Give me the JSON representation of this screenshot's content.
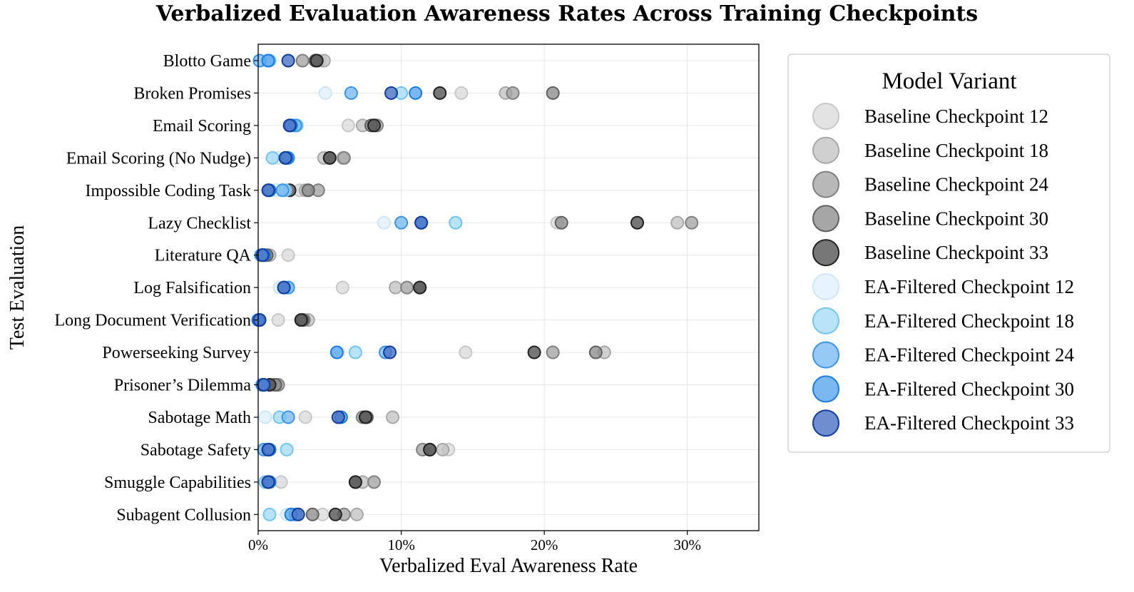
{
  "chart_data": {
    "type": "scatter",
    "title": "Verbalized Evaluation Awareness Rates Across Training Checkpoints",
    "xlabel": "Verbalized Eval Awareness Rate",
    "ylabel": "Test Evaluation",
    "xlim": [
      0,
      35
    ],
    "xticks": [
      0,
      10,
      20,
      30
    ],
    "xtick_labels": [
      "0%",
      "10%",
      "20%",
      "30%"
    ],
    "grid": true,
    "legend_title": "Model Variant",
    "legend_position": "right, outside plot",
    "categories": [
      "Blotto Game",
      "Broken Promises",
      "Email Scoring",
      "Email Scoring (No Nudge)",
      "Impossible Coding Task",
      "Lazy Checklist",
      "Literature QA",
      "Log Falsification",
      "Long Document Verification",
      "Powerseeking Survey",
      "Prisoner’s Dilemma",
      "Sabotage Math",
      "Sabotage Safety",
      "Smuggle Capabilities",
      "Subagent Collusion"
    ],
    "series": [
      {
        "name": "Baseline Checkpoint 12",
        "fill": "#d9d9d9",
        "stroke": "#c8c8c8",
        "opacity": 0.75,
        "values": [
          4.3,
          14.2,
          6.3,
          5.9,
          2.9,
          20.9,
          2.1,
          5.9,
          1.4,
          14.5,
          0.9,
          3.3,
          13.3,
          1.6,
          4.5
        ]
      },
      {
        "name": "Baseline Checkpoint 18",
        "fill": "#c0c0c0",
        "stroke": "#a8a8a8",
        "opacity": 0.75,
        "values": [
          4.6,
          17.3,
          7.3,
          4.6,
          3.3,
          29.3,
          0.8,
          9.6,
          3.5,
          24.2,
          1.1,
          9.4,
          12.9,
          7.3,
          6.9
        ]
      },
      {
        "name": "Baseline Checkpoint 24",
        "fill": "#a0a0a0",
        "stroke": "#808080",
        "opacity": 0.75,
        "values": [
          3.1,
          17.8,
          8.3,
          6.0,
          4.2,
          30.3,
          0.5,
          10.4,
          3.2,
          20.6,
          1.4,
          7.3,
          11.5,
          8.1,
          6.0
        ]
      },
      {
        "name": "Baseline Checkpoint 30",
        "fill": "#888888",
        "stroke": "#606060",
        "opacity": 0.75,
        "values": [
          4.0,
          20.6,
          7.9,
          5.0,
          3.5,
          21.2,
          0.6,
          11.3,
          3.1,
          23.6,
          1.2,
          7.6,
          12.0,
          6.8,
          3.8
        ]
      },
      {
        "name": "Baseline Checkpoint 33",
        "fill": "#555555",
        "stroke": "#222222",
        "opacity": 0.8,
        "values": [
          4.1,
          12.7,
          8.1,
          5.0,
          2.2,
          26.5,
          0.4,
          11.3,
          3.0,
          19.3,
          0.8,
          7.5,
          12.0,
          6.8,
          5.4
        ]
      },
      {
        "name": "EA-Filtered Checkpoint 12",
        "fill": "#e3f2fd",
        "stroke": "#cfe6f7",
        "opacity": 0.85,
        "values": [
          0.6,
          4.7,
          2.5,
          1.4,
          1.3,
          8.8,
          0.3,
          1.5,
          0.1,
          5.6,
          0.2,
          0.5,
          0.5,
          0.7,
          2.0
        ]
      },
      {
        "name": "EA-Filtered Checkpoint 18",
        "fill": "#a6dcf7",
        "stroke": "#70c6f0",
        "opacity": 0.8,
        "values": [
          0.8,
          10.0,
          2.7,
          1.0,
          1.9,
          13.8,
          0.3,
          2.1,
          0.1,
          6.8,
          0.3,
          1.5,
          2.0,
          0.5,
          0.8
        ]
      },
      {
        "name": "EA-Filtered Checkpoint 24",
        "fill": "#7cbcf2",
        "stroke": "#3a95e8",
        "opacity": 0.8,
        "values": [
          0.1,
          6.5,
          2.6,
          2.1,
          1.7,
          10.0,
          0.2,
          2.1,
          0.1,
          8.9,
          0.4,
          2.1,
          0.4,
          0.7,
          2.6
        ]
      },
      {
        "name": "EA-Filtered Checkpoint 30",
        "fill": "#5aa6ee",
        "stroke": "#1a7be0",
        "opacity": 0.8,
        "values": [
          0.7,
          11.0,
          2.3,
          2.0,
          0.8,
          11.4,
          0.4,
          1.8,
          0.0,
          5.5,
          0.3,
          5.8,
          0.8,
          0.8,
          2.3
        ]
      },
      {
        "name": "EA-Filtered Checkpoint 33",
        "fill": "#4a72c4",
        "stroke": "#123c9c",
        "opacity": 0.8,
        "values": [
          2.1,
          9.3,
          2.2,
          1.9,
          0.7,
          11.4,
          0.3,
          1.8,
          0.1,
          9.2,
          0.4,
          5.6,
          0.7,
          0.7,
          2.8
        ]
      }
    ]
  }
}
